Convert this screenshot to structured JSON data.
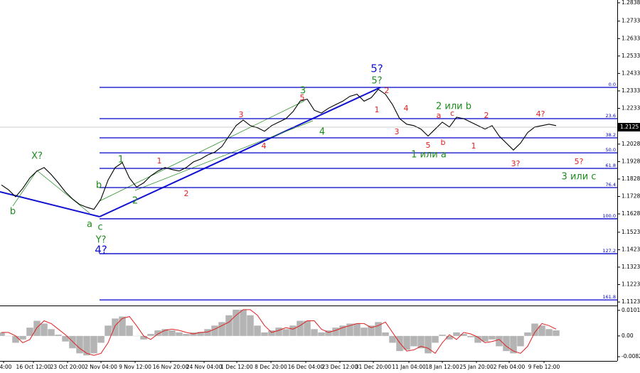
{
  "chart_data": {
    "type": "line",
    "price": {
      "name": "EURUSD",
      "color": "#000000",
      "values": [
        1.1794,
        1.1766,
        1.1726,
        1.1774,
        1.1834,
        1.1874,
        1.1894,
        1.1854,
        1.1806,
        1.1754,
        1.1714,
        1.1682,
        1.1666,
        1.1654,
        1.1714,
        1.1822,
        1.1894,
        1.1922,
        1.1834,
        1.1782,
        1.1806,
        1.1846,
        1.1874,
        1.1894,
        1.1882,
        1.1874,
        1.1894,
        1.1926,
        1.1942,
        1.1966,
        1.1982,
        1.2014,
        1.2074,
        1.2134,
        1.2166,
        1.2134,
        1.2122,
        1.2102,
        1.2134,
        1.2154,
        1.2174,
        1.2214,
        1.2274,
        1.2286,
        1.2222,
        1.2206,
        1.2234,
        1.2254,
        1.2274,
        1.2302,
        1.2314,
        1.2274,
        1.2294,
        1.2342,
        1.2314,
        1.2254,
        1.2174,
        1.2142,
        1.2134,
        1.2114,
        1.2074,
        1.2114,
        1.2154,
        1.2126,
        1.2182,
        1.2174,
        1.2154,
        1.2134,
        1.2114,
        1.2134,
        1.2074,
        1.2034,
        1.1994,
        1.2034,
        1.2094,
        1.2126,
        1.2134,
        1.2142,
        1.2134
      ]
    },
    "ylim": [
      1.1103,
      1.2854
    ],
    "yticks": [
      1.1123,
      1.1223,
      1.1323,
      1.1423,
      1.1523,
      1.1628,
      1.1728,
      1.1828,
      1.1928,
      1.2028,
      1.2233,
      1.2333,
      1.2433,
      1.2533,
      1.2633,
      1.2733,
      1.2838
    ],
    "current_price": 1.2125,
    "xlim": [
      -0.2,
      86.6
    ],
    "xticks": [
      {
        "value": 0.3,
        "label": "4:00"
      },
      {
        "value": 4.5,
        "label": "16 Oct 12:00"
      },
      {
        "value": 9.3,
        "label": "23 Oct 20:00"
      },
      {
        "value": 14,
        "label": "2 Nov 04:00"
      },
      {
        "value": 18.8,
        "label": "9 Nov 12:00"
      },
      {
        "value": 23.8,
        "label": "16 Nov 20:00"
      },
      {
        "value": 28.5,
        "label": "24 Nov 04:00"
      },
      {
        "value": 33.1,
        "label": "1 Dec 12:00"
      },
      {
        "value": 37.9,
        "label": "8 Dec 20:00"
      },
      {
        "value": 42.8,
        "label": "16 Dec 04:00"
      },
      {
        "value": 47.6,
        "label": "23 Dec 12:00"
      },
      {
        "value": 52.3,
        "label": "31 Dec 20:00"
      },
      {
        "value": 57.3,
        "label": "11 Jan 04:00"
      },
      {
        "value": 62,
        "label": "18 Jan 12:00"
      },
      {
        "value": 66.8,
        "label": "25 Jan 20:00"
      },
      {
        "value": 71.4,
        "label": "2 Feb 04:00"
      },
      {
        "value": 76.3,
        "label": "9 Feb 12:00"
      }
    ],
    "fib_levels": [
      {
        "label": "0.0",
        "price": 1.2353
      },
      {
        "label": "23.6",
        "price": 1.2174
      },
      {
        "label": "38.2",
        "price": 1.2064
      },
      {
        "label": "50.0",
        "price": 1.1978
      },
      {
        "label": "61.8",
        "price": 1.1889
      },
      {
        "label": "76.4",
        "price": 1.1779
      },
      {
        "label": "100.0",
        "price": 1.16
      },
      {
        "label": "127.2",
        "price": 1.14
      },
      {
        "label": "161.8",
        "price": 1.1135
      }
    ],
    "fib_color": "#0000c8",
    "annotations": [
      {
        "text": "b",
        "color": "#1a8c1a"
      },
      {
        "text": "X?",
        "color": "#1a8c1a"
      },
      {
        "text": "b",
        "color": "#1a8c1a"
      },
      {
        "text": "a",
        "color": "#1a8c1a"
      },
      {
        "text": "c",
        "color": "#1a8c1a"
      },
      {
        "text": "Y?",
        "color": "#1a8c1a"
      },
      {
        "text": "4?",
        "color": "#1010d0"
      },
      {
        "text": "1",
        "color": "#1a8c1a"
      },
      {
        "text": "2",
        "color": "#1a8c1a"
      },
      {
        "text": "1",
        "color": "#e02020"
      },
      {
        "text": "2",
        "color": "#e02020"
      },
      {
        "text": "3",
        "color": "#e02020"
      },
      {
        "text": "4",
        "color": "#e02020"
      },
      {
        "text": "5",
        "color": "#e02020"
      },
      {
        "text": "3",
        "color": "#1a8c1a"
      },
      {
        "text": "4",
        "color": "#1a8c1a"
      },
      {
        "text": "5?",
        "color": "#1010d0"
      },
      {
        "text": "5?",
        "color": "#1a8c1a"
      },
      {
        "text": "2",
        "color": "#e02020"
      },
      {
        "text": "1",
        "color": "#e02020"
      },
      {
        "text": "4",
        "color": "#e02020"
      },
      {
        "text": "3",
        "color": "#e02020"
      },
      {
        "text": "5",
        "color": "#e02020"
      },
      {
        "text": "b",
        "color": "#e02020"
      },
      {
        "text": "a",
        "color": "#e02020"
      },
      {
        "text": "c",
        "color": "#e02020"
      },
      {
        "text": "2 или b",
        "color": "#1a8c1a"
      },
      {
        "text": "2",
        "color": "#e02020"
      },
      {
        "text": "1",
        "color": "#e02020"
      },
      {
        "text": "1 или a",
        "color": "#1a8c1a"
      },
      {
        "text": "4?",
        "color": "#e02020"
      },
      {
        "text": "3?",
        "color": "#e02020"
      },
      {
        "text": "5?",
        "color": "#e02020"
      },
      {
        "text": "3 или c",
        "color": "#1a8c1a"
      }
    ],
    "oscillator": {
      "ylim": [
        -0.0099,
        0.0115
      ],
      "yticks": [
        {
          "value": 0.01014,
          "label": "0.01014"
        },
        {
          "value": 0,
          "label": "0.00"
        },
        {
          "value": -0.00823,
          "label": "-0.00823"
        }
      ],
      "histogram": {
        "color": "#b4b4b4",
        "values": [
          0.0014,
          0,
          -0.0027,
          -0.0014,
          0.0033,
          0.006,
          0.0049,
          0.0027,
          0.0005,
          -0.0022,
          -0.0049,
          -0.0069,
          -0.0077,
          -0.0069,
          -0.0027,
          0.0041,
          0.0069,
          0.0077,
          0.0041,
          0,
          -0.0014,
          0.0008,
          0.0022,
          0.0027,
          0.0022,
          0.0014,
          0.0008,
          0.0014,
          0.0016,
          0.0027,
          0.0041,
          0.0055,
          0.0082,
          0.0104,
          0.0104,
          0.0082,
          0.0041,
          0.0014,
          0.0022,
          0.0033,
          0.0027,
          0.0041,
          0.006,
          0.006,
          0.0027,
          0.0014,
          0.0022,
          0.0033,
          0.0041,
          0.0049,
          0.0049,
          0.0033,
          0.0041,
          0.0055,
          0.0014,
          -0.0027,
          -0.006,
          -0.0055,
          -0.0041,
          -0.0049,
          -0.0069,
          -0.0027,
          0.0005,
          -0.0014,
          0.0014,
          0.0008,
          -0.0005,
          -0.0027,
          -0.0022,
          -0.0014,
          -0.0041,
          -0.006,
          -0.0069,
          -0.0041,
          0.0014,
          0.0049,
          0.0041,
          0.0027,
          0.0022
        ]
      },
      "signal": {
        "color": "#e02020",
        "values": [
          0.0014,
          0.0014,
          0,
          -0.0027,
          -0.0014,
          0.0033,
          0.006,
          0.0049,
          0.0027,
          0.0005,
          -0.0022,
          -0.0049,
          -0.0069,
          -0.0077,
          -0.0069,
          -0.0027,
          0.0041,
          0.0069,
          0.0077,
          0.0041,
          0,
          -0.0014,
          0.0008,
          0.0022,
          0.0027,
          0.0022,
          0.0014,
          0.0008,
          0.0014,
          0.0016,
          0.0027,
          0.0041,
          0.0055,
          0.0082,
          0.0104,
          0.0104,
          0.0082,
          0.0041,
          0.0014,
          0.0022,
          0.0033,
          0.0027,
          0.0041,
          0.006,
          0.006,
          0.0027,
          0.0014,
          0.0022,
          0.0033,
          0.0041,
          0.0049,
          0.0049,
          0.0033,
          0.0041,
          0.0055,
          0.0014,
          -0.0027,
          -0.006,
          -0.0055,
          -0.0041,
          -0.0049,
          -0.0069,
          -0.0027,
          0.0005,
          -0.0014,
          0.0014,
          0.0008,
          -0.0005,
          -0.0027,
          -0.0022,
          -0.0014,
          -0.0041,
          -0.006,
          -0.0069,
          -0.0041,
          0.0014,
          0.0049,
          0.0041,
          0.0027
        ]
      }
    }
  }
}
